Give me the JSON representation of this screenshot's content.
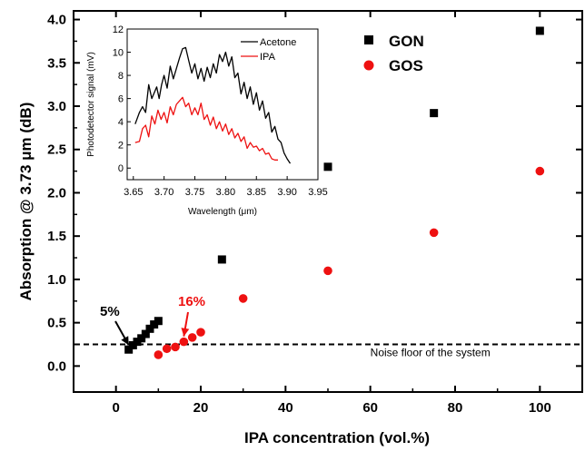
{
  "chart_data": [
    {
      "type": "scatter",
      "xlabel": "IPA concentration (vol.%)",
      "ylabel": "Absorption @ 3.73 μm (dB)",
      "xlim": [
        -10,
        110
      ],
      "ylim": [
        -0.3,
        4.1
      ],
      "x_ticks": [
        0,
        20,
        40,
        60,
        80,
        100
      ],
      "y_ticks": [
        0.0,
        0.5,
        1.0,
        1.5,
        2.0,
        2.5,
        3.0,
        3.5,
        4.0
      ],
      "legend_position": "top-right",
      "series": [
        {
          "name": "GON",
          "color": "#000000",
          "marker": "square",
          "x": [
            3,
            4,
            5,
            6,
            7,
            8,
            9,
            10,
            25,
            50,
            75,
            100
          ],
          "y": [
            0.19,
            0.24,
            0.28,
            0.32,
            0.37,
            0.43,
            0.48,
            0.52,
            1.23,
            2.3,
            2.92,
            3.87
          ]
        },
        {
          "name": "GOS",
          "color": "#ee1111",
          "marker": "circle",
          "x": [
            10,
            12,
            14,
            16,
            18,
            20,
            30,
            50,
            75,
            100
          ],
          "y": [
            0.13,
            0.2,
            0.22,
            0.28,
            0.33,
            0.39,
            0.78,
            1.1,
            1.54,
            2.25
          ]
        }
      ],
      "reference_line": {
        "y": 0.25,
        "style": "dashed",
        "label": "Noise floor of the system"
      },
      "annotations": [
        {
          "text": "5%",
          "color": "#000000",
          "target": [
            3,
            0.2
          ]
        },
        {
          "text": "16%",
          "color": "#ee1111",
          "target": [
            16,
            0.3
          ]
        }
      ]
    },
    {
      "type": "line",
      "xlabel": "Wavelength (μm)",
      "ylabel": "Photodetector signal (mV)",
      "xlim": [
        3.64,
        3.95
      ],
      "ylim": [
        -1,
        12
      ],
      "x_ticks": [
        3.65,
        3.7,
        3.75,
        3.8,
        3.85,
        3.9,
        3.95
      ],
      "y_ticks": [
        0,
        2,
        4,
        6,
        8,
        10,
        12
      ],
      "legend_position": "top-right",
      "series": [
        {
          "name": "Acetone",
          "color": "#000000",
          "x": [
            3.653,
            3.66,
            3.665,
            3.67,
            3.675,
            3.68,
            3.684,
            3.688,
            3.692,
            3.696,
            3.7,
            3.705,
            3.71,
            3.715,
            3.72,
            3.725,
            3.73,
            3.735,
            3.74,
            3.745,
            3.75,
            3.755,
            3.76,
            3.765,
            3.77,
            3.775,
            3.78,
            3.785,
            3.79,
            3.795,
            3.8,
            3.805,
            3.81,
            3.815,
            3.82,
            3.825,
            3.83,
            3.835,
            3.84,
            3.845,
            3.85,
            3.855,
            3.86,
            3.865,
            3.87,
            3.875,
            3.88,
            3.885,
            3.89,
            3.895,
            3.9,
            3.905
          ],
          "y": [
            3.8,
            4.8,
            5.3,
            4.8,
            7.2,
            6.0,
            6.5,
            7.0,
            6.0,
            7.2,
            8.0,
            6.9,
            8.8,
            7.7,
            8.6,
            9.5,
            10.3,
            10.4,
            9.3,
            8.2,
            9.0,
            7.7,
            8.6,
            7.5,
            8.7,
            7.8,
            9.0,
            8.2,
            9.8,
            9.2,
            10.0,
            8.8,
            9.6,
            7.8,
            8.2,
            6.4,
            7.4,
            6.0,
            7.0,
            5.5,
            6.5,
            5.0,
            5.8,
            4.3,
            4.8,
            3.1,
            3.6,
            2.5,
            2.2,
            1.3,
            0.8,
            0.4
          ]
        },
        {
          "name": "IPA",
          "color": "#ee1111",
          "x": [
            3.653,
            3.66,
            3.665,
            3.67,
            3.675,
            3.68,
            3.685,
            3.69,
            3.695,
            3.7,
            3.705,
            3.71,
            3.715,
            3.72,
            3.725,
            3.73,
            3.735,
            3.74,
            3.745,
            3.75,
            3.755,
            3.76,
            3.765,
            3.77,
            3.775,
            3.78,
            3.785,
            3.79,
            3.795,
            3.8,
            3.805,
            3.81,
            3.815,
            3.82,
            3.825,
            3.83,
            3.835,
            3.84,
            3.845,
            3.85,
            3.855,
            3.86,
            3.865,
            3.87,
            3.875,
            3.88,
            3.885
          ],
          "y": [
            2.2,
            2.3,
            3.4,
            3.7,
            2.7,
            4.5,
            3.8,
            5.0,
            4.2,
            4.8,
            3.9,
            5.3,
            4.6,
            5.5,
            5.8,
            6.1,
            5.3,
            5.6,
            4.6,
            5.2,
            4.6,
            5.6,
            4.2,
            4.6,
            3.7,
            4.4,
            3.4,
            4.0,
            3.2,
            3.8,
            2.9,
            3.4,
            2.6,
            3.0,
            2.3,
            2.7,
            1.7,
            2.2,
            1.8,
            1.9,
            1.5,
            1.7,
            1.2,
            1.3,
            0.8,
            0.7,
            0.7
          ]
        }
      ]
    }
  ]
}
